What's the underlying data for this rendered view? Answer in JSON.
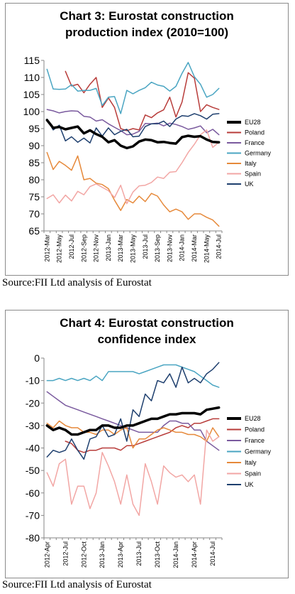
{
  "chart_data": [
    {
      "type": "line",
      "title": "Chart 3: Eurostat construction",
      "title_line2": "production index (2010=100)",
      "ylim": [
        65,
        115
      ],
      "yticks": [
        65,
        70,
        75,
        80,
        85,
        90,
        95,
        100,
        105,
        110,
        115
      ],
      "x": [
        "2012-Mar",
        "2012-Apr",
        "2012-May",
        "2012-Jun",
        "2012-Jul",
        "2012-Aug",
        "2012-Sep",
        "2012-Oct",
        "2012-Nov",
        "2012-Dec",
        "2013-Jan",
        "2013-Feb",
        "2013-Mar",
        "2013-Apr",
        "2013-May",
        "2013-Jun",
        "2013-Jul",
        "2013-Aug",
        "2013-Sep",
        "2013-Oct",
        "2013-Nov",
        "2013-Dec",
        "2014-Jan",
        "2014-Feb",
        "2014-Mar",
        "2014-Apr",
        "2014-May",
        "2014-Jun",
        "2014-Jul"
      ],
      "x_tick_labels": [
        "2012-Mar",
        "2012-May",
        "2012-Jul",
        "2012-Sep",
        "2012-Nov",
        "2013-Jan",
        "2013-Mar",
        "2013-May",
        "2013-Jul",
        "2013-Sep",
        "2013-Nov",
        "2014-Jan",
        "2014-Mar",
        "2014-May",
        "2014-Jul"
      ],
      "grid": false,
      "legend_position": "right",
      "series": [
        {
          "name": "EU28",
          "color": "#000000",
          "width": 3.5,
          "values": [
            97.5,
            95.2,
            95.5,
            94.8,
            95.2,
            95.6,
            93.6,
            94.5,
            93.4,
            92.6,
            91.0,
            91.6,
            90.0,
            89.3,
            89.8,
            91.2,
            91.8,
            91.6,
            91.0,
            91.1,
            90.8,
            90.6,
            92.5,
            92.9,
            92.6,
            92.8,
            91.8,
            91.1,
            91.0
          ]
        },
        {
          "name": "Poland",
          "color": "#b83c3a",
          "width": 1.5,
          "values": [
            null,
            null,
            null,
            111.8,
            107.5,
            108.0,
            105.5,
            108.0,
            110.0,
            101.2,
            104.0,
            101.2,
            95.0,
            94.4,
            95.0,
            94.6,
            99.0,
            98.2,
            99.6,
            100.5,
            104.2,
            98.4,
            102.8,
            111.4,
            109.8,
            100.0,
            102.0,
            101.2,
            100.6
          ]
        },
        {
          "name": "France",
          "color": "#7a5a9e",
          "width": 1.5,
          "values": [
            100.6,
            100.2,
            99.6,
            100.0,
            100.2,
            100.1,
            98.6,
            98.4,
            97.2,
            97.6,
            96.4,
            95.4,
            94.4,
            93.2,
            93.4,
            94.2,
            96.5,
            96.4,
            96.6,
            95.8,
            96.6,
            96.2,
            95.6,
            94.8,
            95.2,
            95.8,
            93.8,
            94.8,
            93.2
          ]
        },
        {
          "name": "Germany",
          "color": "#4aa5c2",
          "width": 1.5,
          "values": [
            112.4,
            106.6,
            106.5,
            106.6,
            107.9,
            106.0,
            106.2,
            106.2,
            106.8,
            101.8,
            104.2,
            104.4,
            99.4,
            106.2,
            105.2,
            106.2,
            107.0,
            108.6,
            107.8,
            107.4,
            106.0,
            107.4,
            111.2,
            114.4,
            110.2,
            108.0,
            104.2,
            105.0,
            106.8
          ]
        },
        {
          "name": "Italy",
          "color": "#e6893a",
          "width": 1.5,
          "values": [
            88.0,
            83.0,
            85.4,
            84.2,
            82.8,
            87.0,
            80.0,
            80.4,
            79.0,
            78.6,
            77.4,
            74.0,
            71.0,
            74.2,
            73.2,
            75.2,
            73.6,
            76.0,
            75.2,
            72.6,
            70.6,
            71.4,
            70.6,
            68.4,
            70.0,
            70.0,
            69.0,
            68.2,
            66.4
          ]
        },
        {
          "name": "Spain",
          "color": "#f2a6a4",
          "width": 1.5,
          "values": [
            74.5,
            75.6,
            73.2,
            75.5,
            73.8,
            76.6,
            75.6,
            78.0,
            78.8,
            77.8,
            76.8,
            74.8,
            78.4,
            73.0,
            76.4,
            78.2,
            78.4,
            79.2,
            80.8,
            80.4,
            82.2,
            82.4,
            85.0,
            88.0,
            90.4,
            93.2,
            94.6,
            89.5,
            91.0
          ]
        },
        {
          "name": "UK",
          "color": "#1e3f6e",
          "width": 1.5,
          "values": [
            97.8,
            94.6,
            96.0,
            91.4,
            92.6,
            91.0,
            92.2,
            90.8,
            95.2,
            92.8,
            95.2,
            93.2,
            94.2,
            94.8,
            92.6,
            92.8,
            95.6,
            96.4,
            96.4,
            97.2,
            95.6,
            97.8,
            98.8,
            98.6,
            99.4,
            98.8,
            97.8,
            99.2,
            99.4
          ]
        }
      ]
    },
    {
      "type": "line",
      "title": "Chart 4: Eurostat construction",
      "title_line2": "confidence index",
      "ylim": [
        -80,
        0
      ],
      "yticks": [
        0,
        -10,
        -20,
        -30,
        -40,
        -50,
        -60,
        -70,
        -80
      ],
      "x": [
        "2012-Apr",
        "2012-May",
        "2012-Jun",
        "2012-Jul",
        "2012-Aug",
        "2012-Sep",
        "2012-Oct",
        "2012-Nov",
        "2012-Dec",
        "2013-Jan",
        "2013-Feb",
        "2013-Mar",
        "2013-Apr",
        "2013-May",
        "2013-Jun",
        "2013-Jul",
        "2013-Aug",
        "2013-Sep",
        "2013-Oct",
        "2013-Nov",
        "2013-Dec",
        "2014-Jan",
        "2014-Feb",
        "2014-Mar",
        "2014-Apr",
        "2014-May",
        "2014-Jun",
        "2014-Jul",
        "2014-Aug"
      ],
      "x_tick_labels": [
        "2012-Apr",
        "2012-Jul",
        "2012-Oct",
        "2013-Jan",
        "2013-Apr",
        "2013-Jul",
        "2013-Oct",
        "2014-Jan",
        "2014-Apr",
        "2014-Jul"
      ],
      "grid": false,
      "legend_position": "right",
      "series": [
        {
          "name": "EU28",
          "color": "#000000",
          "width": 3.5,
          "values": [
            -30,
            -32,
            -31,
            -32,
            -34,
            -34,
            -33,
            -32,
            -32,
            -30,
            -30,
            -31,
            -31,
            -30,
            -30,
            -29,
            -28,
            -27,
            -27,
            -26,
            -25,
            -25,
            -24.5,
            -24.5,
            -24.5,
            -25,
            -23,
            -22.5,
            -22
          ]
        },
        {
          "name": "Poland",
          "color": "#b83c3a",
          "width": 1.5,
          "values": [
            null,
            null,
            null,
            -37,
            -38,
            -41,
            -42,
            -41,
            -41,
            -40,
            -40,
            -40,
            -41,
            -39,
            -39,
            -38,
            -37,
            -36,
            -35,
            -34,
            -33,
            -31,
            -30,
            -31,
            -29,
            -29,
            -28,
            -27,
            -27
          ]
        },
        {
          "name": "France",
          "color": "#7a5a9e",
          "width": 1.5,
          "values": [
            -15,
            -17,
            -19,
            -21,
            -22,
            -23,
            -24,
            -25,
            -26,
            -27,
            -28,
            -29,
            -30,
            -31,
            -32,
            -33,
            -33,
            -33,
            -33,
            -30,
            -28,
            -28,
            -29,
            -29,
            -32,
            -32,
            -37,
            -39,
            -41
          ]
        },
        {
          "name": "Germany",
          "color": "#4aa5c2",
          "width": 1.5,
          "values": [
            -10,
            -10,
            -9,
            -10,
            -9,
            -10,
            -9,
            -10,
            -8,
            -10,
            -6,
            -6,
            -6,
            -6,
            -6,
            -7,
            -6,
            -5,
            -4,
            -3,
            -3,
            -3,
            -4,
            -5,
            -6,
            -8,
            -10,
            -12,
            -13
          ]
        },
        {
          "name": "Italy",
          "color": "#e6893a",
          "width": 1.5,
          "values": [
            -29,
            -31,
            -28,
            -30,
            -31,
            -31,
            -33,
            -33,
            -34,
            -32,
            -32,
            -34,
            -32,
            -31,
            -40,
            -36,
            -36,
            -34,
            -32,
            -31,
            -32,
            -33,
            -33,
            -34,
            -34,
            -35,
            -37,
            -31,
            -35
          ]
        },
        {
          "name": "Spain",
          "color": "#f2a6a4",
          "width": 1.5,
          "values": [
            -51,
            -57,
            -47,
            -45,
            -65,
            -57,
            -57,
            -67,
            -60,
            -42,
            -48,
            -55,
            -65,
            -52,
            -65,
            -70,
            -47,
            -55,
            -65,
            -48,
            -51,
            -53,
            -52,
            -55,
            -52,
            -65,
            -32,
            -37,
            -35
          ]
        },
        {
          "name": "UK",
          "color": "#1e3f6e",
          "width": 1.5,
          "values": [
            -44,
            -41,
            -42,
            -41,
            -36,
            -41,
            -45,
            -36,
            -35,
            -30,
            -35,
            -34,
            -27,
            -37,
            -23,
            -26,
            -16,
            -19,
            -10,
            -11,
            -7,
            -13,
            -4,
            -11,
            -9,
            -11,
            -7,
            -5,
            -2
          ]
        }
      ]
    }
  ],
  "sources": [
    "Source:FII Ltd analysis of Eurostat",
    "Source:FII Ltd analysis of Eurostat"
  ]
}
